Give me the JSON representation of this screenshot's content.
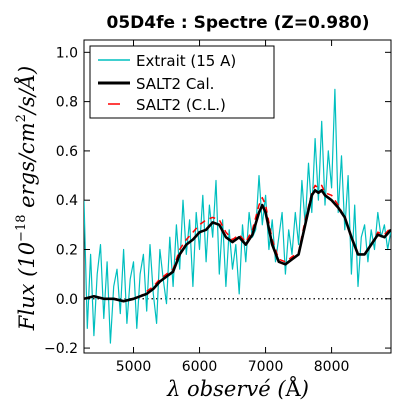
{
  "chart_data": {
    "type": "line",
    "title": "05D4fe : Spectre (Z=0.980)",
    "xlabel_prefix": "λ observé (",
    "xlabel_unit": "Å",
    "xlabel_suffix": ")",
    "ylabel_prefix": "Flux (10",
    "ylabel_exp": "−18",
    "ylabel_mid": " ergs/cm",
    "ylabel_exp2": "2",
    "ylabel_suffix": "/s/Å)",
    "xlim": [
      4250,
      8900
    ],
    "ylim": [
      -0.22,
      1.05
    ],
    "xticks": [
      5000,
      6000,
      7000,
      8000
    ],
    "yticks": [
      -0.2,
      0.0,
      0.2,
      0.4,
      0.6,
      0.8,
      1.0
    ],
    "ytick_labels": [
      "−0.2",
      "0.0",
      "0.2",
      "0.4",
      "0.6",
      "0.8",
      "1.0"
    ],
    "zero_line": true,
    "legend_position": "top-left",
    "colors": {
      "extrait": "#00bfbf",
      "cal": "#000000",
      "cl": "#ff0000",
      "zero": "#000000"
    },
    "series": [
      {
        "name": "Extrait (15 A)",
        "style": "solid",
        "x": [
          4250,
          4300,
          4350,
          4400,
          4450,
          4500,
          4550,
          4600,
          4650,
          4700,
          4750,
          4800,
          4850,
          4900,
          4950,
          5000,
          5050,
          5100,
          5150,
          5200,
          5250,
          5300,
          5350,
          5400,
          5450,
          5500,
          5550,
          5600,
          5650,
          5700,
          5750,
          5800,
          5850,
          5900,
          5950,
          6000,
          6050,
          6100,
          6150,
          6200,
          6250,
          6300,
          6350,
          6400,
          6450,
          6500,
          6550,
          6600,
          6650,
          6700,
          6750,
          6800,
          6850,
          6900,
          6950,
          7000,
          7050,
          7100,
          7150,
          7200,
          7250,
          7300,
          7350,
          7400,
          7450,
          7500,
          7550,
          7600,
          7650,
          7700,
          7750,
          7800,
          7850,
          7900,
          7950,
          8000,
          8050,
          8100,
          8150,
          8200,
          8250,
          8300,
          8350,
          8400,
          8450,
          8500,
          8550,
          8600,
          8650,
          8700,
          8750,
          8800,
          8850,
          8900
        ],
        "y": [
          0.4,
          -0.12,
          0.18,
          -0.15,
          0.1,
          0.22,
          -0.08,
          0.15,
          -0.18,
          0.05,
          0.12,
          -0.06,
          0.2,
          -0.1,
          0.08,
          0.15,
          -0.12,
          0.1,
          0.18,
          -0.05,
          0.22,
          0.02,
          -0.1,
          0.2,
          0.08,
          -0.02,
          0.25,
          0.05,
          0.3,
          0.12,
          0.4,
          0.18,
          0.32,
          0.05,
          0.35,
          0.2,
          0.42,
          0.15,
          0.38,
          0.25,
          0.48,
          0.1,
          0.32,
          0.05,
          0.28,
          0.12,
          0.22,
          0.02,
          0.3,
          0.15,
          0.35,
          0.25,
          0.28,
          0.5,
          0.3,
          0.42,
          0.2,
          0.32,
          0.15,
          0.25,
          0.35,
          0.1,
          0.28,
          0.18,
          0.35,
          0.22,
          0.48,
          0.3,
          0.55,
          0.35,
          0.65,
          0.4,
          0.72,
          0.38,
          0.6,
          0.45,
          0.85,
          0.35,
          0.58,
          0.28,
          0.5,
          0.1,
          0.38,
          0.05,
          0.25,
          0.3,
          0.15,
          0.28,
          0.2,
          0.35,
          0.25,
          0.3,
          0.2,
          0.28
        ]
      },
      {
        "name": "SALT2 Cal.",
        "style": "solid",
        "x": [
          4250,
          4400,
          4550,
          4700,
          4850,
          5000,
          5100,
          5200,
          5300,
          5400,
          5500,
          5600,
          5700,
          5800,
          5900,
          6000,
          6100,
          6200,
          6300,
          6400,
          6500,
          6600,
          6700,
          6800,
          6900,
          6950,
          7000,
          7100,
          7200,
          7300,
          7400,
          7500,
          7600,
          7700,
          7750,
          7800,
          7850,
          7900,
          8000,
          8100,
          8200,
          8300,
          8400,
          8500,
          8600,
          8700,
          8800,
          8900
        ],
        "y": [
          0.0,
          0.01,
          0.0,
          0.0,
          -0.01,
          0.0,
          0.01,
          0.02,
          0.04,
          0.07,
          0.09,
          0.11,
          0.18,
          0.22,
          0.24,
          0.27,
          0.28,
          0.31,
          0.3,
          0.25,
          0.23,
          0.25,
          0.22,
          0.26,
          0.35,
          0.38,
          0.35,
          0.22,
          0.15,
          0.14,
          0.16,
          0.18,
          0.3,
          0.42,
          0.44,
          0.43,
          0.44,
          0.42,
          0.4,
          0.37,
          0.33,
          0.25,
          0.18,
          0.18,
          0.22,
          0.26,
          0.25,
          0.28
        ]
      },
      {
        "name": "SALT2 (C.L.)",
        "style": "dashed",
        "x": [
          4250,
          4400,
          4550,
          4700,
          4850,
          5000,
          5100,
          5200,
          5300,
          5400,
          5500,
          5600,
          5700,
          5800,
          5900,
          6000,
          6100,
          6200,
          6300,
          6400,
          6500,
          6600,
          6700,
          6800,
          6900,
          6950,
          7000,
          7100,
          7200,
          7300,
          7400,
          7500,
          7600,
          7700,
          7750,
          7800,
          7850,
          7900,
          8000,
          8100,
          8200,
          8300,
          8400,
          8500,
          8600,
          8700,
          8800,
          8900
        ],
        "y": [
          0.0,
          0.01,
          0.0,
          0.0,
          -0.01,
          0.0,
          0.01,
          0.03,
          0.05,
          0.08,
          0.1,
          0.12,
          0.2,
          0.24,
          0.27,
          0.3,
          0.32,
          0.33,
          0.32,
          0.27,
          0.24,
          0.26,
          0.23,
          0.28,
          0.38,
          0.41,
          0.38,
          0.24,
          0.16,
          0.15,
          0.17,
          0.19,
          0.32,
          0.43,
          0.46,
          0.45,
          0.46,
          0.43,
          0.42,
          0.38,
          0.33,
          0.25,
          0.18,
          0.18,
          0.22,
          0.27,
          0.26,
          0.29
        ]
      }
    ]
  }
}
